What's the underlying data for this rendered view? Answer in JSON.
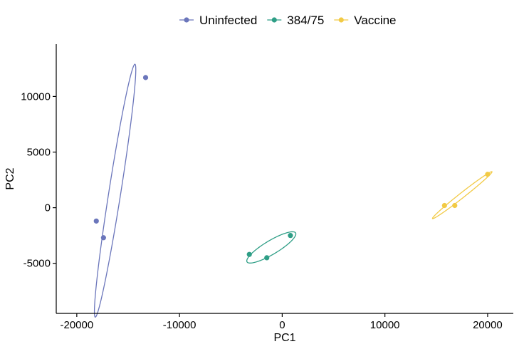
{
  "chart_data": {
    "type": "scatter",
    "xlabel": "PC1",
    "ylabel": "PC2",
    "xlim": [
      -22000,
      22500
    ],
    "ylim": [
      -9500,
      14700
    ],
    "x_ticks": [
      -20000,
      -10000,
      0,
      10000,
      20000
    ],
    "x_tick_labels": [
      "-20000",
      "-10000",
      "0",
      "10000",
      "20000"
    ],
    "y_ticks": [
      -5000,
      0,
      5000,
      10000
    ],
    "y_tick_labels": [
      "-5000",
      "0",
      "5000",
      "10000"
    ],
    "grid": false,
    "legend_position": "top",
    "series": [
      {
        "name": "Uninfected",
        "color": "#6b76bb",
        "points": [
          {
            "x": -13300,
            "y": 11700
          },
          {
            "x": -18100,
            "y": -1200
          },
          {
            "x": -17400,
            "y": -2700
          }
        ],
        "ellipse": {
          "center": [
            -16270,
            1530
          ],
          "semi_major": 11530,
          "semi_minor": 580,
          "angle_deg": 80.35
        }
      },
      {
        "name": "384/75",
        "color": "#2e9e86",
        "points": [
          {
            "x": 800,
            "y": -2500
          },
          {
            "x": -3200,
            "y": -4200
          },
          {
            "x": -1500,
            "y": -4500
          }
        ],
        "ellipse": {
          "center": [
            -1060,
            -3570
          ],
          "semi_major": 2700,
          "semi_minor": 630,
          "angle_deg": 28.6
        }
      },
      {
        "name": "Vaccine",
        "color": "#f2ca45",
        "points": [
          {
            "x": 20000,
            "y": 3000
          },
          {
            "x": 15800,
            "y": 200
          },
          {
            "x": 16800,
            "y": 200
          }
        ],
        "ellipse": {
          "center": [
            17530,
            1130
          ],
          "semi_major": 3580,
          "semi_minor": 230,
          "angle_deg": 36.0
        }
      }
    ]
  }
}
